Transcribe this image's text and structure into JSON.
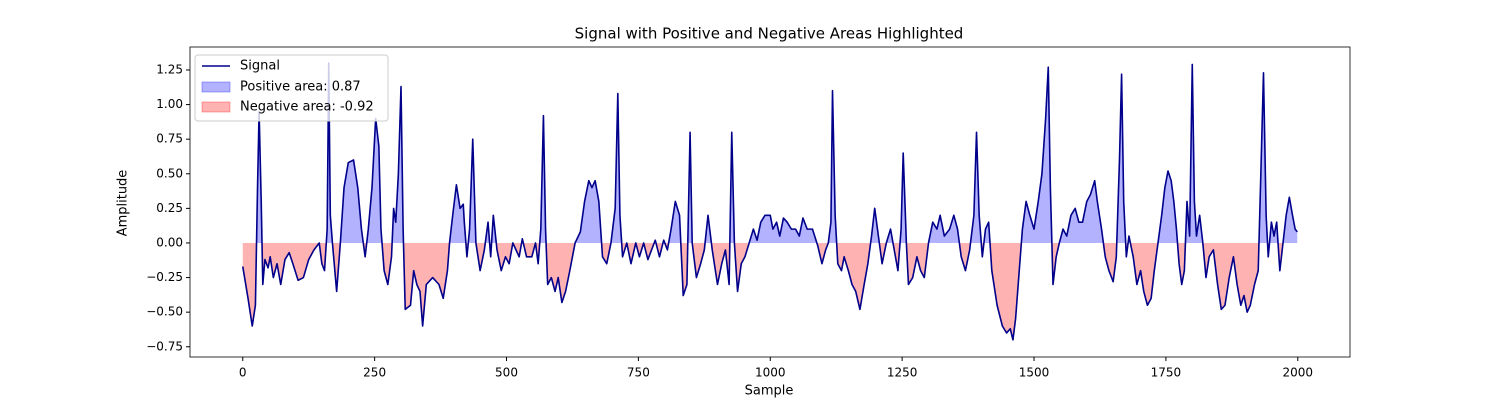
{
  "chart_data": {
    "type": "line",
    "title": "Signal with Positive and Negative Areas Highlighted",
    "xlabel": "Sample",
    "ylabel": "Amplitude",
    "x": [
      0,
      10,
      18,
      24,
      28,
      31,
      35,
      38,
      42,
      48,
      52,
      58,
      65,
      72,
      80,
      88,
      95,
      105,
      115,
      125,
      135,
      145,
      150,
      155,
      160,
      163,
      166,
      170,
      178,
      185,
      192,
      200,
      210,
      218,
      225,
      232,
      238,
      245,
      252,
      258,
      262,
      268,
      275,
      282,
      286,
      290,
      295,
      300,
      304,
      308,
      318,
      324,
      330,
      336,
      341,
      348,
      360,
      372,
      380,
      388,
      392,
      398,
      405,
      412,
      418,
      420,
      425,
      430,
      436,
      442,
      450,
      458,
      465,
      470,
      475,
      482,
      490,
      498,
      505,
      512,
      518,
      524,
      530,
      538,
      548,
      555,
      560,
      565,
      570,
      574,
      578,
      585,
      592,
      598,
      605,
      612,
      620,
      630,
      640,
      648,
      656,
      662,
      668,
      675,
      682,
      690,
      698,
      706,
      711,
      715,
      720,
      728,
      736,
      745,
      752,
      760,
      768,
      775,
      782,
      790,
      798,
      805,
      812,
      820,
      828,
      835,
      842,
      848,
      852,
      860,
      868,
      875,
      882,
      890,
      900,
      908,
      915,
      922,
      927,
      932,
      938,
      945,
      952,
      960,
      968,
      975,
      982,
      990,
      1000,
      1005,
      1012,
      1018,
      1025,
      1032,
      1040,
      1048,
      1055,
      1062,
      1070,
      1080,
      1090,
      1098,
      1105,
      1110,
      1115,
      1118,
      1123,
      1128,
      1135,
      1140,
      1148,
      1155,
      1162,
      1170,
      1178,
      1185,
      1192,
      1198,
      1205,
      1212,
      1220,
      1228,
      1235,
      1242,
      1248,
      1252,
      1258,
      1262,
      1270,
      1278,
      1285,
      1292,
      1300,
      1308,
      1316,
      1322,
      1330,
      1340,
      1348,
      1355,
      1362,
      1370,
      1378,
      1386,
      1391,
      1396,
      1402,
      1408,
      1414,
      1420,
      1430,
      1440,
      1448,
      1455,
      1460,
      1465,
      1472,
      1478,
      1485,
      1492,
      1500,
      1508,
      1515,
      1522,
      1527,
      1531,
      1536,
      1542,
      1548,
      1555,
      1562,
      1570,
      1578,
      1585,
      1592,
      1600,
      1607,
      1615,
      1620,
      1628,
      1635,
      1642,
      1650,
      1656,
      1662,
      1666,
      1670,
      1675,
      1680,
      1688,
      1695,
      1702,
      1708,
      1715,
      1722,
      1728,
      1735,
      1742,
      1748,
      1754,
      1760,
      1765,
      1770,
      1775,
      1780,
      1785,
      1790,
      1795,
      1800,
      1804,
      1808,
      1814,
      1820,
      1826,
      1832,
      1840,
      1848,
      1855,
      1862,
      1870,
      1878,
      1885,
      1892,
      1898,
      1904,
      1910,
      1918,
      1925,
      1930,
      1935,
      1940,
      1944,
      1950,
      1955,
      1960,
      1966,
      1972,
      1978,
      1984,
      1990,
      1995,
      1999
    ],
    "series": [
      {
        "name": "Signal",
        "color": "#00008b",
        "values": [
          -0.17,
          -0.4,
          -0.6,
          -0.45,
          0.4,
          0.95,
          0.3,
          -0.3,
          -0.12,
          -0.18,
          -0.1,
          -0.25,
          -0.15,
          -0.3,
          -0.12,
          -0.07,
          -0.15,
          -0.27,
          -0.25,
          -0.12,
          -0.05,
          0.0,
          -0.15,
          -0.2,
          0.1,
          1.3,
          0.2,
          0.0,
          -0.35,
          0.0,
          0.4,
          0.58,
          0.6,
          0.4,
          0.1,
          -0.1,
          0.1,
          0.4,
          0.9,
          0.7,
          0.1,
          -0.2,
          -0.3,
          -0.1,
          0.25,
          0.15,
          0.5,
          1.13,
          0.1,
          -0.48,
          -0.45,
          -0.2,
          -0.3,
          -0.35,
          -0.6,
          -0.3,
          -0.25,
          -0.3,
          -0.4,
          -0.2,
          0.0,
          0.2,
          0.42,
          0.25,
          0.28,
          0.15,
          -0.1,
          0.1,
          0.75,
          0.0,
          -0.2,
          -0.05,
          0.15,
          -0.1,
          0.2,
          -0.05,
          -0.2,
          -0.1,
          -0.15,
          0.0,
          -0.05,
          -0.1,
          0.03,
          -0.1,
          -0.1,
          0.0,
          -0.15,
          0.1,
          0.92,
          0.1,
          -0.3,
          -0.25,
          -0.35,
          -0.25,
          -0.43,
          -0.35,
          -0.2,
          0.0,
          0.08,
          0.3,
          0.45,
          0.4,
          0.45,
          0.3,
          -0.1,
          -0.15,
          0.0,
          0.25,
          1.08,
          0.2,
          -0.1,
          0.0,
          -0.15,
          0.0,
          -0.1,
          0.0,
          -0.12,
          -0.05,
          0.02,
          -0.1,
          0.02,
          -0.05,
          0.1,
          0.3,
          0.2,
          -0.38,
          -0.3,
          0.8,
          0.0,
          -0.25,
          -0.15,
          -0.05,
          0.2,
          -0.05,
          -0.3,
          -0.15,
          -0.05,
          -0.3,
          0.8,
          0.0,
          -0.35,
          -0.15,
          -0.1,
          0.0,
          0.1,
          0.02,
          0.15,
          0.2,
          0.2,
          0.1,
          0.15,
          0.05,
          0.18,
          0.15,
          0.1,
          0.1,
          0.05,
          0.18,
          0.1,
          0.1,
          -0.02,
          -0.15,
          -0.05,
          0.0,
          0.15,
          1.1,
          0.2,
          -0.15,
          -0.2,
          -0.1,
          -0.2,
          -0.3,
          -0.35,
          -0.48,
          -0.3,
          -0.15,
          0.05,
          0.25,
          0.05,
          -0.15,
          0.0,
          0.1,
          -0.05,
          -0.2,
          0.1,
          0.65,
          0.0,
          -0.3,
          -0.25,
          -0.1,
          -0.2,
          -0.25,
          0.0,
          0.15,
          0.1,
          0.2,
          0.05,
          0.1,
          0.2,
          0.1,
          -0.1,
          -0.2,
          -0.05,
          0.2,
          0.8,
          0.2,
          -0.1,
          0.1,
          0.15,
          -0.2,
          -0.45,
          -0.6,
          -0.65,
          -0.62,
          -0.7,
          -0.55,
          -0.2,
          0.1,
          0.3,
          0.2,
          0.1,
          0.3,
          0.5,
          0.9,
          1.27,
          0.4,
          -0.3,
          -0.1,
          0.0,
          0.1,
          0.05,
          0.2,
          0.25,
          0.15,
          0.15,
          0.3,
          0.35,
          0.45,
          0.3,
          0.1,
          -0.1,
          -0.2,
          -0.28,
          -0.1,
          0.6,
          1.22,
          0.3,
          -0.1,
          0.05,
          -0.1,
          -0.3,
          -0.2,
          -0.35,
          -0.45,
          -0.4,
          -0.2,
          0.0,
          0.2,
          0.4,
          0.52,
          0.45,
          0.3,
          0.1,
          -0.15,
          -0.3,
          -0.2,
          0.3,
          0.05,
          1.29,
          0.3,
          0.05,
          0.2,
          0.0,
          -0.25,
          -0.1,
          -0.05,
          -0.3,
          -0.48,
          -0.45,
          -0.25,
          -0.1,
          -0.3,
          -0.45,
          -0.38,
          -0.5,
          -0.45,
          -0.3,
          -0.2,
          0.5,
          1.23,
          0.2,
          -0.1,
          0.15,
          0.05,
          0.15,
          -0.2,
          0.0,
          0.2,
          0.33,
          0.2,
          0.1,
          0.08
        ]
      }
    ],
    "areas": [
      {
        "name": "Positive area: 0.87",
        "color": "#0000ff",
        "alpha": 0.3,
        "side": "above"
      },
      {
        "name": "Negative area: -0.92",
        "color": "#ff0000",
        "alpha": 0.3,
        "side": "below"
      }
    ],
    "xlim": [
      -100,
      2099
    ],
    "ylim": [
      -0.824,
      1.416
    ],
    "xticks": [
      0,
      250,
      500,
      750,
      1000,
      1250,
      1500,
      1750,
      2000
    ],
    "yticks": [
      {
        "value": -0.75,
        "label": "−0.75"
      },
      {
        "value": -0.5,
        "label": "−0.50"
      },
      {
        "value": -0.25,
        "label": "−0.25"
      },
      {
        "value": 0,
        "label": "0.00"
      },
      {
        "value": 0.25,
        "label": "0.25"
      },
      {
        "value": 0.5,
        "label": "0.50"
      },
      {
        "value": 0.75,
        "label": "0.75"
      },
      {
        "value": 1,
        "label": "1.00"
      },
      {
        "value": 1.25,
        "label": "1.25"
      }
    ],
    "legend": "upper left"
  }
}
